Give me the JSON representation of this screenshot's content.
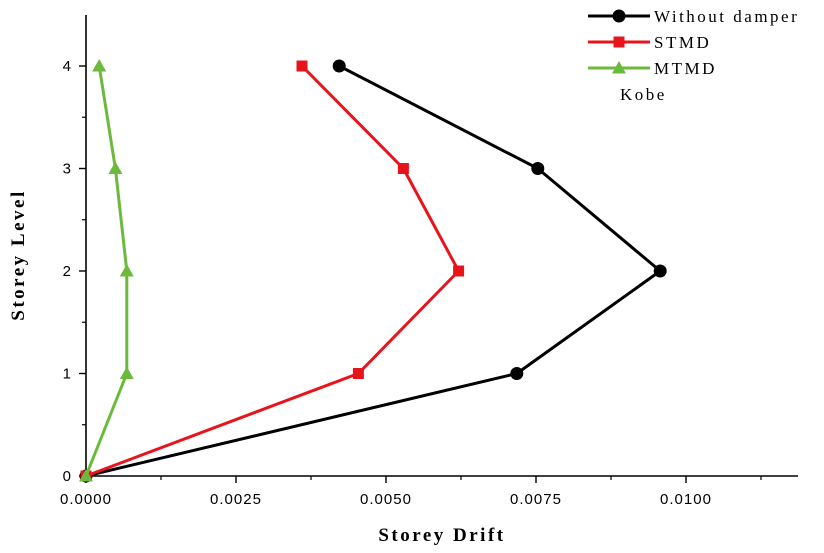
{
  "chart_data": {
    "type": "line",
    "title": "",
    "xlabel": "Storey Drift",
    "ylabel": "Storey Level",
    "xlim": [
      0,
      0.0113
    ],
    "ylim": [
      0,
      4.4
    ],
    "x_ticks": [
      0.0,
      0.0025,
      0.005,
      0.0075,
      0.01
    ],
    "x_tick_labels": [
      "0.0000",
      "0.0025",
      "0.0050",
      "0.0075",
      "0.0100"
    ],
    "y_ticks": [
      0,
      1,
      2,
      3,
      4
    ],
    "y_tick_labels": [
      "0",
      "1",
      "2",
      "3",
      "4"
    ],
    "grid": false,
    "legend_position": "top-right",
    "legend_note": "Kobe",
    "series": [
      {
        "name": "Without damper",
        "color": "#000000",
        "marker": "circle",
        "points": [
          {
            "x": 0.0,
            "y": 0
          },
          {
            "x": 0.00718,
            "y": 1
          },
          {
            "x": 0.00957,
            "y": 2
          },
          {
            "x": 0.00753,
            "y": 3
          },
          {
            "x": 0.00422,
            "y": 4
          }
        ]
      },
      {
        "name": "STMD",
        "color": "#e8141c",
        "marker": "square",
        "points": [
          {
            "x": 0.0,
            "y": 0
          },
          {
            "x": 0.00454,
            "y": 1
          },
          {
            "x": 0.00621,
            "y": 2
          },
          {
            "x": 0.00529,
            "y": 3
          },
          {
            "x": 0.0036,
            "y": 4
          }
        ]
      },
      {
        "name": "MTMD",
        "color": "#6cba3c",
        "marker": "triangle",
        "points": [
          {
            "x": 0.0,
            "y": 0
          },
          {
            "x": 0.00068,
            "y": 1
          },
          {
            "x": 0.00068,
            "y": 2
          },
          {
            "x": 0.00049,
            "y": 3
          },
          {
            "x": 0.00022,
            "y": 4
          }
        ]
      }
    ]
  }
}
